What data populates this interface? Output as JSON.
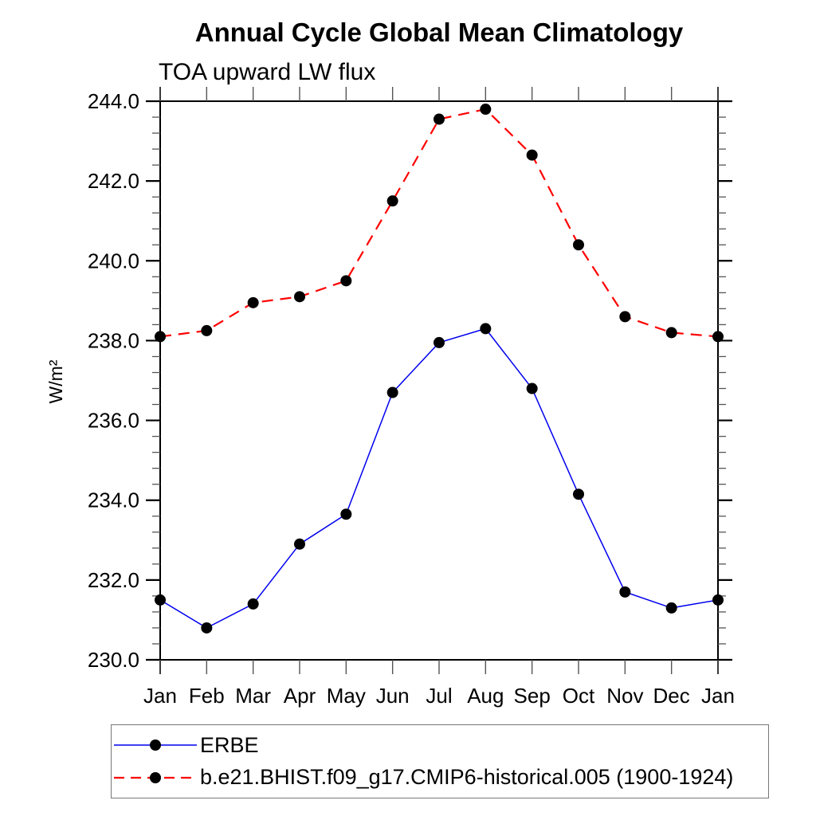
{
  "chart_data": {
    "type": "line",
    "title": "Annual Cycle Global Mean Climatology",
    "subtitle": "TOA upward LW flux",
    "ylabel": "W/m²",
    "xlabel": "",
    "ylim": [
      230.0,
      244.0
    ],
    "ytick_interval": 2.0,
    "yminor_interval": 0.4,
    "ytick_labels": [
      "230.0",
      "232.0",
      "234.0",
      "236.0",
      "238.0",
      "240.0",
      "242.0",
      "244.0"
    ],
    "categories": [
      "Jan",
      "Feb",
      "Mar",
      "Apr",
      "May",
      "Jun",
      "Jul",
      "Aug",
      "Sep",
      "Oct",
      "Nov",
      "Dec",
      "Jan"
    ],
    "grid": false,
    "legend_position": "bottom-left-box",
    "axis_color": "#000000",
    "minor_tick_color": "#555555",
    "marker_color": "#000000",
    "series": [
      {
        "name": "ERBE",
        "color": "#0000ee",
        "style": "solid",
        "marker": "circle",
        "values": [
          231.5,
          230.8,
          231.4,
          232.9,
          233.65,
          236.7,
          237.95,
          238.3,
          236.8,
          234.15,
          231.7,
          231.3,
          231.5
        ]
      },
      {
        "name": "b.e21.BHIST.f09_g17.CMIP6-historical.005 (1900-1924)",
        "color": "#ff0000",
        "style": "dashed",
        "marker": "circle",
        "values": [
          238.1,
          238.25,
          238.95,
          239.1,
          239.5,
          241.5,
          243.55,
          243.8,
          242.65,
          240.4,
          238.6,
          238.2,
          238.1
        ]
      }
    ]
  }
}
